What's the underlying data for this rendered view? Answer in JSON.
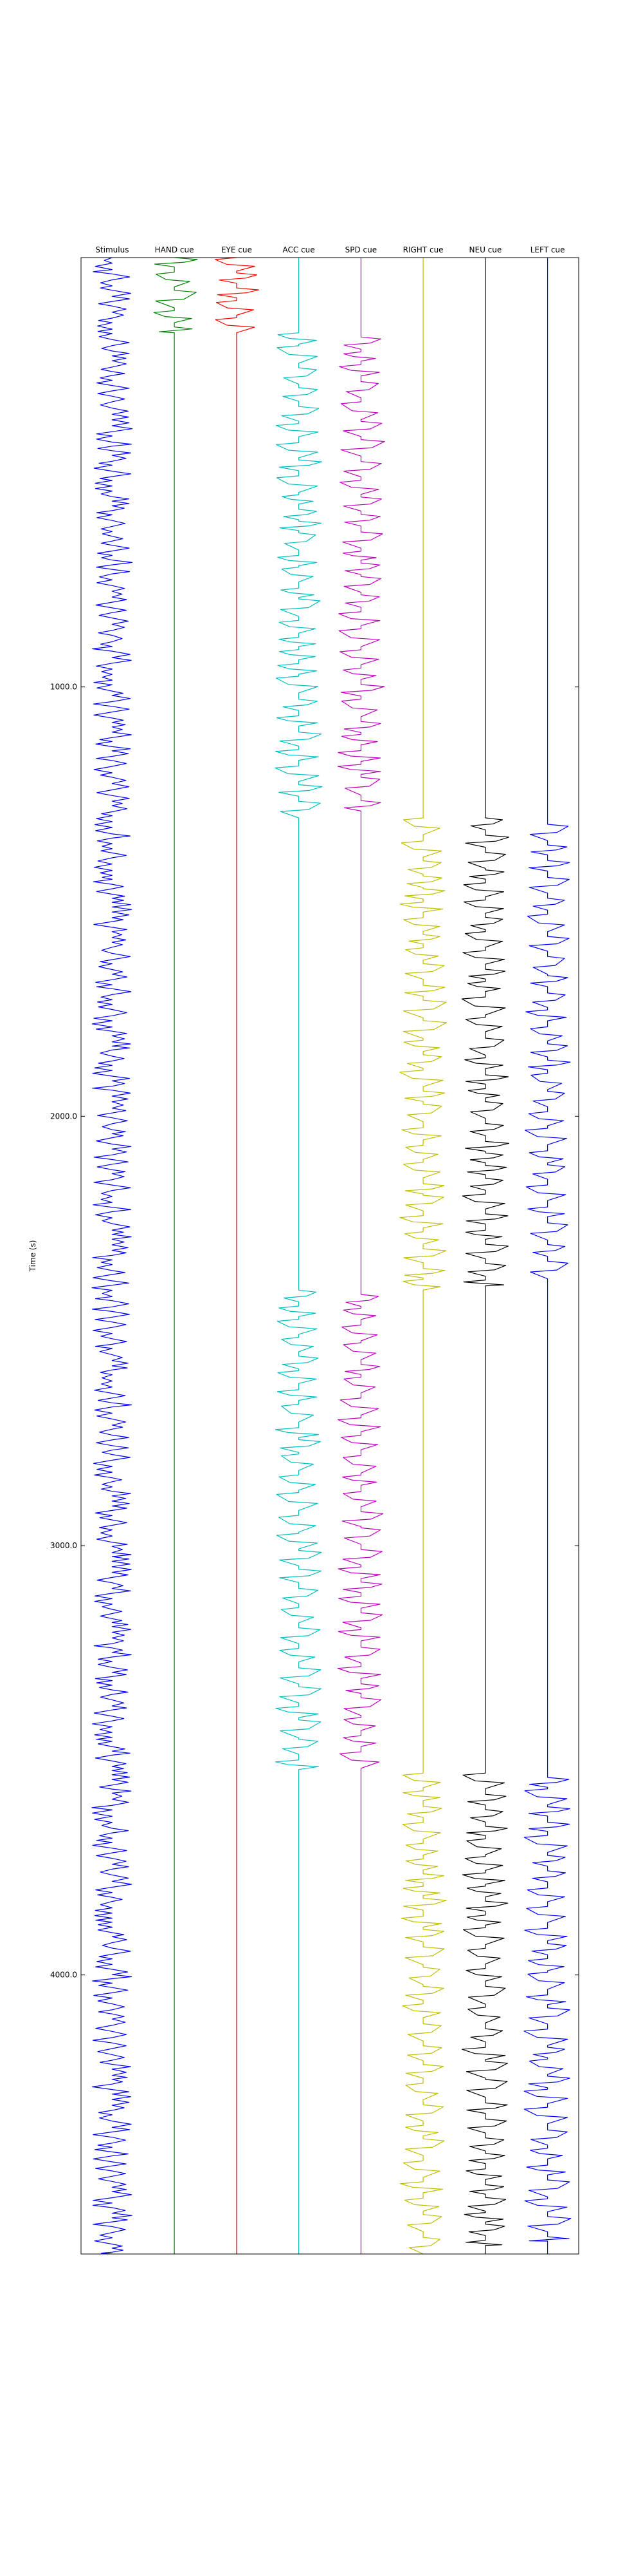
{
  "chart_data": {
    "type": "line",
    "title": "",
    "xlabel": "",
    "ylabel": "Time (s)",
    "ylim": [
      0,
      4650
    ],
    "y_inverted": true,
    "y_ticks": [
      {
        "value": 1000,
        "label": "1000.0"
      },
      {
        "value": 2000,
        "label": "2000.0"
      },
      {
        "value": 3000,
        "label": "3000.0"
      },
      {
        "value": 4000,
        "label": "4000.0"
      }
    ],
    "grid": false,
    "legend": "none",
    "series": [
      {
        "name": "Stimulus",
        "color": "#0000ff",
        "pattern": "continuous",
        "active": [
          [
            0,
            4650
          ]
        ],
        "amplitude": 0.38
      },
      {
        "name": "HAND cue",
        "color": "#008000",
        "pattern": "onset-offset",
        "active": [
          [
            0,
            175
          ]
        ],
        "amplitude": 0.38
      },
      {
        "name": "EYE cue",
        "color": "#ff0000",
        "pattern": "onset-offset",
        "active": [
          [
            0,
            175
          ]
        ],
        "amplitude": 0.38
      },
      {
        "name": "ACC cue",
        "color": "#00bfbf",
        "pattern": "onset-offset",
        "active": [
          [
            175,
            1305
          ],
          [
            2405,
            3530
          ]
        ],
        "amplitude": 0.38
      },
      {
        "name": "SPD cue",
        "color": "#bf00bf",
        "pattern": "onset-offset",
        "active": [
          [
            185,
            1295
          ],
          [
            2415,
            3520
          ]
        ],
        "amplitude": 0.38
      },
      {
        "name": "RIGHT cue",
        "color": "#bfbf00",
        "pattern": "onset-offset",
        "active": [
          [
            1305,
            2405
          ],
          [
            3530,
            4650
          ]
        ],
        "amplitude": 0.38
      },
      {
        "name": "NEU cue",
        "color": "#000000",
        "pattern": "onset-offset",
        "active": [
          [
            1305,
            2395
          ],
          [
            3530,
            4630
          ]
        ],
        "amplitude": 0.38
      },
      {
        "name": "LEFT cue",
        "color": "#0000ff",
        "pattern": "onset-offset",
        "active": [
          [
            1320,
            2385
          ],
          [
            3540,
            4620
          ]
        ],
        "amplitude": 0.38
      }
    ]
  }
}
